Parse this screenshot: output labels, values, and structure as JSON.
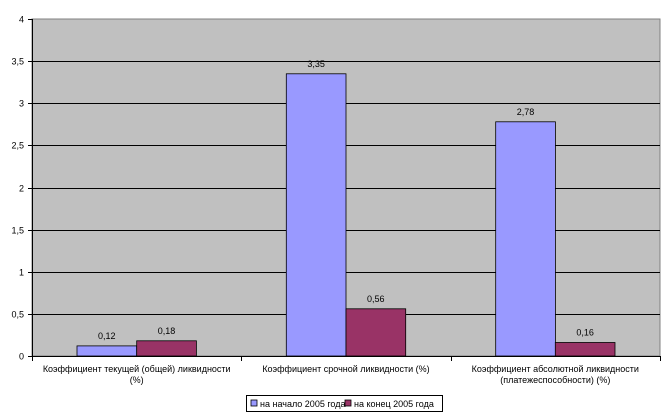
{
  "chart_data": {
    "type": "bar",
    "title": "",
    "xlabel": "",
    "ylabel": "",
    "ylim": [
      0,
      4
    ],
    "ytick_step": 0.5,
    "ytick_labels": [
      "0",
      "0,5",
      "1",
      "1,5",
      "2",
      "2,5",
      "3",
      "3,5",
      "4"
    ],
    "grid": true,
    "legend": "bottom",
    "plot_background": "#c0c0c0",
    "categories": [
      [
        "Коэффициент текущей (общей) ликвидности",
        "(%)"
      ],
      [
        "Коэффициент срочной ликвидности (%)"
      ],
      [
        "Коэффициент абсолютной ликвидности",
        "(платежеспособности) (%)"
      ]
    ],
    "series": [
      {
        "name": "на начало 2005 года",
        "color": "#9999ff",
        "values": [
          0.12,
          3.35,
          2.78
        ],
        "labels": [
          "0,12",
          "3,35",
          "2,78"
        ]
      },
      {
        "name": "на конец 2005 года",
        "color": "#993366",
        "values": [
          0.18,
          0.56,
          0.16
        ],
        "labels": [
          "0,18",
          "0,56",
          "0,16"
        ]
      }
    ]
  }
}
